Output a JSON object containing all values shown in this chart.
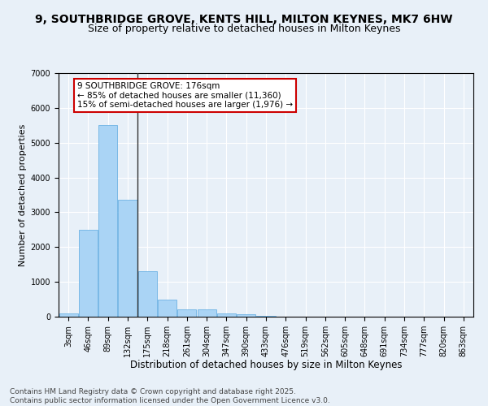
{
  "title1": "9, SOUTHBRIDGE GROVE, KENTS HILL, MILTON KEYNES, MK7 6HW",
  "title2": "Size of property relative to detached houses in Milton Keynes",
  "xlabel": "Distribution of detached houses by size in Milton Keynes",
  "ylabel": "Number of detached properties",
  "categories": [
    "3sqm",
    "46sqm",
    "89sqm",
    "132sqm",
    "175sqm",
    "218sqm",
    "261sqm",
    "304sqm",
    "347sqm",
    "390sqm",
    "433sqm",
    "476sqm",
    "519sqm",
    "562sqm",
    "605sqm",
    "648sqm",
    "691sqm",
    "734sqm",
    "777sqm",
    "820sqm",
    "863sqm"
  ],
  "values": [
    100,
    2500,
    5500,
    3350,
    1300,
    500,
    220,
    200,
    100,
    60,
    30,
    0,
    0,
    0,
    0,
    0,
    0,
    0,
    0,
    0,
    0
  ],
  "bar_color": "#aad4f5",
  "bar_edge_color": "#5aa8e0",
  "vline_color": "#333333",
  "annotation_text": "9 SOUTHBRIDGE GROVE: 176sqm\n← 85% of detached houses are smaller (11,360)\n15% of semi-detached houses are larger (1,976) →",
  "annotation_box_color": "#ffffff",
  "annotation_box_edge": "#cc0000",
  "ylim": [
    0,
    7000
  ],
  "yticks": [
    0,
    1000,
    2000,
    3000,
    4000,
    5000,
    6000,
    7000
  ],
  "background_color": "#e8f0f8",
  "plot_bg_color": "#e8f0f8",
  "grid_color": "#ffffff",
  "footer": "Contains HM Land Registry data © Crown copyright and database right 2025.\nContains public sector information licensed under the Open Government Licence v3.0.",
  "title1_fontsize": 10,
  "title2_fontsize": 9,
  "xlabel_fontsize": 8.5,
  "ylabel_fontsize": 8,
  "tick_fontsize": 7,
  "annotation_fontsize": 7.5,
  "footer_fontsize": 6.5
}
